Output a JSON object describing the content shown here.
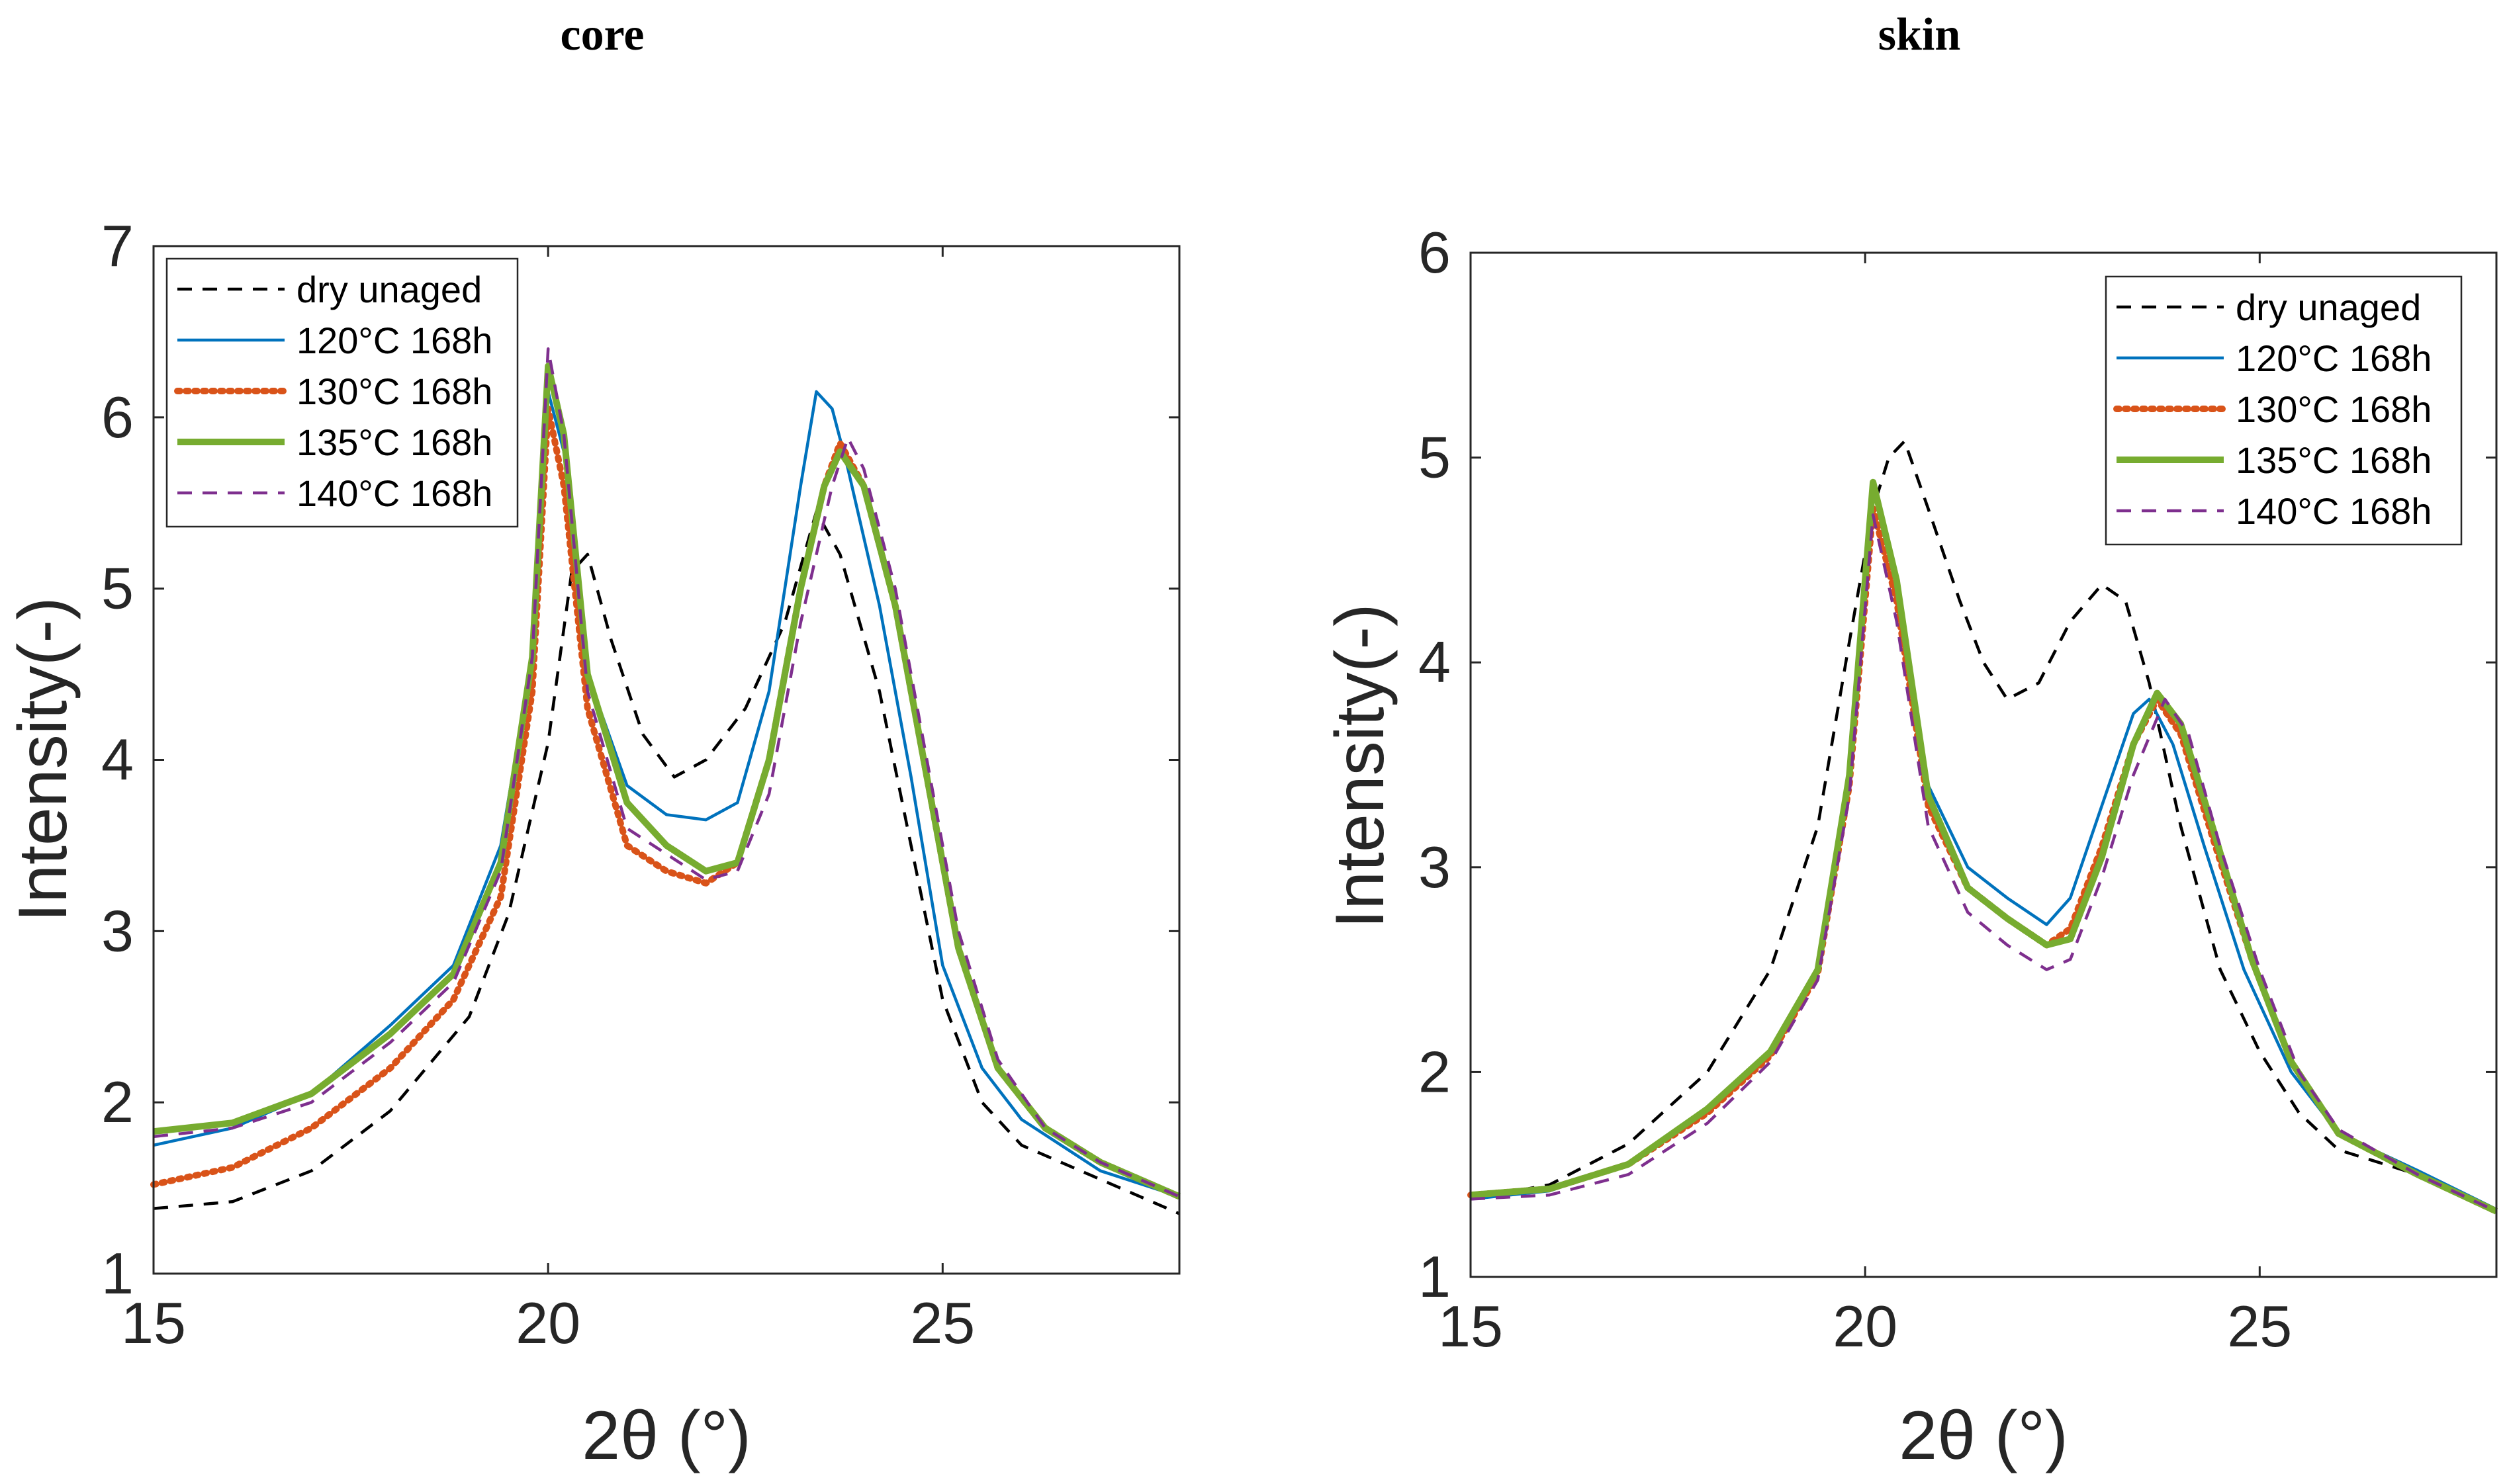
{
  "colors": {
    "dry_unaged": "#000000",
    "c120": "#0072BD",
    "c130": "#D95319",
    "c135": "#77AC30",
    "c140": "#7E2F8E"
  },
  "chart_data": [
    {
      "type": "line",
      "title": "core",
      "xlabel": "2θ (°)",
      "ylabel": "Intensity(-)",
      "xlim": [
        15,
        28
      ],
      "ylim": [
        1,
        7
      ],
      "xticks": [
        "15",
        "20",
        "25"
      ],
      "yticks": [
        "1",
        "2",
        "3",
        "4",
        "5",
        "6",
        "7"
      ],
      "legend_position": "top-left",
      "series": [
        {
          "name": "dry unaged",
          "style": "dashed",
          "color": "#000000",
          "points": [
            [
              15,
              1.38
            ],
            [
              16,
              1.42
            ],
            [
              17,
              1.6
            ],
            [
              18,
              1.95
            ],
            [
              19,
              2.5
            ],
            [
              19.5,
              3.1
            ],
            [
              20,
              4.1
            ],
            [
              20.3,
              5.1
            ],
            [
              20.5,
              5.2
            ],
            [
              20.8,
              4.7
            ],
            [
              21.2,
              4.15
            ],
            [
              21.6,
              3.9
            ],
            [
              22,
              4.0
            ],
            [
              22.5,
              4.3
            ],
            [
              23,
              4.8
            ],
            [
              23.4,
              5.45
            ],
            [
              23.7,
              5.2
            ],
            [
              24.2,
              4.4
            ],
            [
              24.6,
              3.5
            ],
            [
              25,
              2.6
            ],
            [
              25.5,
              2.0
            ],
            [
              26,
              1.75
            ],
            [
              27,
              1.55
            ],
            [
              28,
              1.35
            ]
          ]
        },
        {
          "name": "120°C 168h",
          "style": "solid",
          "color": "#0072BD",
          "points": [
            [
              15,
              1.75
            ],
            [
              16,
              1.85
            ],
            [
              17,
              2.05
            ],
            [
              18,
              2.45
            ],
            [
              18.8,
              2.8
            ],
            [
              19.4,
              3.5
            ],
            [
              19.8,
              4.6
            ],
            [
              20,
              6.15
            ],
            [
              20.2,
              5.8
            ],
            [
              20.5,
              4.5
            ],
            [
              21,
              3.85
            ],
            [
              21.5,
              3.68
            ],
            [
              22,
              3.65
            ],
            [
              22.4,
              3.75
            ],
            [
              22.8,
              4.4
            ],
            [
              23.2,
              5.6
            ],
            [
              23.4,
              6.15
            ],
            [
              23.6,
              6.05
            ],
            [
              23.8,
              5.7
            ],
            [
              24.2,
              4.9
            ],
            [
              24.6,
              3.9
            ],
            [
              25,
              2.8
            ],
            [
              25.5,
              2.2
            ],
            [
              26,
              1.9
            ],
            [
              27,
              1.6
            ],
            [
              28,
              1.45
            ]
          ]
        },
        {
          "name": "130°C 168h",
          "style": "dotted",
          "color": "#D95319",
          "points": [
            [
              15,
              1.52
            ],
            [
              16,
              1.62
            ],
            [
              17,
              1.85
            ],
            [
              18,
              2.2
            ],
            [
              18.8,
              2.6
            ],
            [
              19.4,
              3.2
            ],
            [
              19.8,
              4.4
            ],
            [
              20,
              6.05
            ],
            [
              20.2,
              5.6
            ],
            [
              20.5,
              4.3
            ],
            [
              21,
              3.5
            ],
            [
              21.5,
              3.35
            ],
            [
              22,
              3.28
            ],
            [
              22.4,
              3.4
            ],
            [
              22.8,
              4.0
            ],
            [
              23.2,
              5.0
            ],
            [
              23.5,
              5.6
            ],
            [
              23.7,
              5.85
            ],
            [
              24,
              5.6
            ],
            [
              24.4,
              4.9
            ],
            [
              24.8,
              3.9
            ],
            [
              25.2,
              2.9
            ],
            [
              25.7,
              2.2
            ],
            [
              26.3,
              1.85
            ],
            [
              27,
              1.65
            ],
            [
              28,
              1.45
            ]
          ]
        },
        {
          "name": "135°C 168h",
          "style": "solid-thick",
          "color": "#77AC30",
          "points": [
            [
              15,
              1.83
            ],
            [
              16,
              1.88
            ],
            [
              17,
              2.05
            ],
            [
              18,
              2.4
            ],
            [
              18.8,
              2.75
            ],
            [
              19.4,
              3.4
            ],
            [
              19.8,
              4.6
            ],
            [
              20,
              6.3
            ],
            [
              20.2,
              5.9
            ],
            [
              20.5,
              4.5
            ],
            [
              21,
              3.75
            ],
            [
              21.5,
              3.5
            ],
            [
              22,
              3.35
            ],
            [
              22.4,
              3.4
            ],
            [
              22.8,
              4.0
            ],
            [
              23.2,
              5.0
            ],
            [
              23.5,
              5.6
            ],
            [
              23.7,
              5.8
            ],
            [
              24,
              5.6
            ],
            [
              24.4,
              4.9
            ],
            [
              24.8,
              3.9
            ],
            [
              25.2,
              2.9
            ],
            [
              25.7,
              2.2
            ],
            [
              26.3,
              1.85
            ],
            [
              27,
              1.65
            ],
            [
              28,
              1.45
            ]
          ]
        },
        {
          "name": "140°C 168h",
          "style": "dashed",
          "color": "#7E2F8E",
          "points": [
            [
              15,
              1.8
            ],
            [
              16,
              1.85
            ],
            [
              17,
              2.0
            ],
            [
              18,
              2.35
            ],
            [
              18.8,
              2.7
            ],
            [
              19.4,
              3.35
            ],
            [
              19.8,
              4.6
            ],
            [
              20,
              6.4
            ],
            [
              20.2,
              5.9
            ],
            [
              20.5,
              4.4
            ],
            [
              21,
              3.6
            ],
            [
              21.5,
              3.45
            ],
            [
              22,
              3.3
            ],
            [
              22.4,
              3.35
            ],
            [
              22.8,
              3.8
            ],
            [
              23.2,
              4.8
            ],
            [
              23.6,
              5.6
            ],
            [
              23.8,
              5.88
            ],
            [
              24,
              5.7
            ],
            [
              24.4,
              5.0
            ],
            [
              24.8,
              4.0
            ],
            [
              25.2,
              3.0
            ],
            [
              25.7,
              2.25
            ],
            [
              26.3,
              1.85
            ],
            [
              27,
              1.65
            ],
            [
              28,
              1.45
            ]
          ]
        }
      ]
    },
    {
      "type": "line",
      "title": "skin",
      "xlabel": "2θ (°)",
      "ylabel": "Intensity(-)",
      "xlim": [
        15,
        28
      ],
      "ylim": [
        1,
        6
      ],
      "xticks": [
        "15",
        "20",
        "25"
      ],
      "yticks": [
        "1",
        "2",
        "3",
        "4",
        "5",
        "6"
      ],
      "legend_position": "top-right",
      "series": [
        {
          "name": "dry unaged",
          "style": "dashed",
          "color": "#000000",
          "points": [
            [
              15,
              1.38
            ],
            [
              16,
              1.45
            ],
            [
              17,
              1.65
            ],
            [
              18,
              2.0
            ],
            [
              18.8,
              2.5
            ],
            [
              19.4,
              3.2
            ],
            [
              19.8,
              4.1
            ],
            [
              20.1,
              4.75
            ],
            [
              20.3,
              5.0
            ],
            [
              20.5,
              5.08
            ],
            [
              20.8,
              4.75
            ],
            [
              21.2,
              4.3
            ],
            [
              21.5,
              4.0
            ],
            [
              21.8,
              3.82
            ],
            [
              22.2,
              3.9
            ],
            [
              22.6,
              4.2
            ],
            [
              23,
              4.38
            ],
            [
              23.3,
              4.3
            ],
            [
              23.6,
              3.9
            ],
            [
              24,
              3.2
            ],
            [
              24.5,
              2.5
            ],
            [
              25,
              2.1
            ],
            [
              25.5,
              1.8
            ],
            [
              26,
              1.62
            ],
            [
              27,
              1.5
            ],
            [
              28,
              1.32
            ]
          ]
        },
        {
          "name": "120°C 168h",
          "style": "solid",
          "color": "#0072BD",
          "points": [
            [
              15,
              1.38
            ],
            [
              16,
              1.42
            ],
            [
              17,
              1.55
            ],
            [
              18,
              1.8
            ],
            [
              18.8,
              2.1
            ],
            [
              19.4,
              2.5
            ],
            [
              19.8,
              3.5
            ],
            [
              20.1,
              4.85
            ],
            [
              20.4,
              4.4
            ],
            [
              20.8,
              3.4
            ],
            [
              21.3,
              3.0
            ],
            [
              21.8,
              2.85
            ],
            [
              22.3,
              2.72
            ],
            [
              22.6,
              2.85
            ],
            [
              23,
              3.3
            ],
            [
              23.4,
              3.75
            ],
            [
              23.6,
              3.82
            ],
            [
              23.9,
              3.6
            ],
            [
              24.3,
              3.1
            ],
            [
              24.8,
              2.5
            ],
            [
              25.4,
              2.0
            ],
            [
              26,
              1.7
            ],
            [
              27,
              1.52
            ],
            [
              28,
              1.33
            ]
          ]
        },
        {
          "name": "130°C 168h",
          "style": "dotted",
          "color": "#D95319",
          "points": [
            [
              15,
              1.4
            ],
            [
              16,
              1.43
            ],
            [
              17,
              1.55
            ],
            [
              18,
              1.8
            ],
            [
              18.8,
              2.08
            ],
            [
              19.4,
              2.48
            ],
            [
              19.8,
              3.4
            ],
            [
              20.1,
              4.75
            ],
            [
              20.4,
              4.3
            ],
            [
              20.8,
              3.3
            ],
            [
              21.3,
              2.9
            ],
            [
              21.8,
              2.75
            ],
            [
              22.3,
              2.62
            ],
            [
              22.6,
              2.7
            ],
            [
              23,
              3.1
            ],
            [
              23.4,
              3.6
            ],
            [
              23.7,
              3.82
            ],
            [
              24,
              3.65
            ],
            [
              24.4,
              3.15
            ],
            [
              24.9,
              2.55
            ],
            [
              25.4,
              2.05
            ],
            [
              26,
              1.7
            ],
            [
              27,
              1.5
            ],
            [
              28,
              1.32
            ]
          ]
        },
        {
          "name": "135°C 168h",
          "style": "solid-thick",
          "color": "#77AC30",
          "points": [
            [
              15,
              1.4
            ],
            [
              16,
              1.43
            ],
            [
              17,
              1.55
            ],
            [
              18,
              1.82
            ],
            [
              18.8,
              2.1
            ],
            [
              19.4,
              2.5
            ],
            [
              19.8,
              3.45
            ],
            [
              20.1,
              4.88
            ],
            [
              20.4,
              4.4
            ],
            [
              20.8,
              3.35
            ],
            [
              21.3,
              2.9
            ],
            [
              21.8,
              2.75
            ],
            [
              22.3,
              2.62
            ],
            [
              22.6,
              2.65
            ],
            [
              23,
              3.05
            ],
            [
              23.4,
              3.6
            ],
            [
              23.7,
              3.85
            ],
            [
              24,
              3.7
            ],
            [
              24.4,
              3.2
            ],
            [
              24.9,
              2.55
            ],
            [
              25.4,
              2.05
            ],
            [
              26,
              1.7
            ],
            [
              27,
              1.5
            ],
            [
              28,
              1.32
            ]
          ]
        },
        {
          "name": "140°C 168h",
          "style": "dashed",
          "color": "#7E2F8E",
          "points": [
            [
              15,
              1.38
            ],
            [
              16,
              1.4
            ],
            [
              17,
              1.5
            ],
            [
              18,
              1.75
            ],
            [
              18.8,
              2.05
            ],
            [
              19.4,
              2.45
            ],
            [
              19.8,
              3.35
            ],
            [
              20.1,
              4.72
            ],
            [
              20.4,
              4.2
            ],
            [
              20.8,
              3.2
            ],
            [
              21.3,
              2.78
            ],
            [
              21.8,
              2.62
            ],
            [
              22.3,
              2.5
            ],
            [
              22.6,
              2.55
            ],
            [
              23,
              2.95
            ],
            [
              23.4,
              3.45
            ],
            [
              23.8,
              3.82
            ],
            [
              24.1,
              3.65
            ],
            [
              24.5,
              3.1
            ],
            [
              25,
              2.5
            ],
            [
              25.5,
              2.0
            ],
            [
              26,
              1.72
            ],
            [
              27,
              1.5
            ],
            [
              28,
              1.32
            ]
          ]
        }
      ]
    }
  ]
}
